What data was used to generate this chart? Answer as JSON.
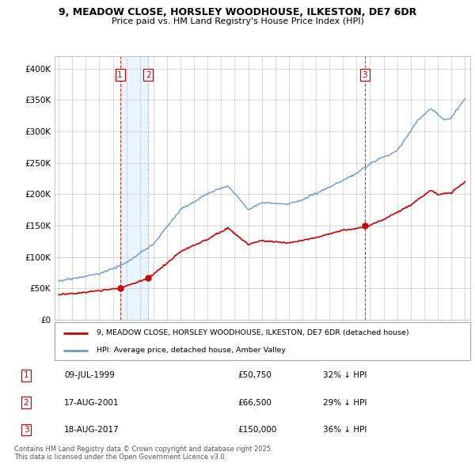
{
  "title": "9, MEADOW CLOSE, HORSLEY WOODHOUSE, ILKESTON, DE7 6DR",
  "subtitle": "Price paid vs. HM Land Registry's House Price Index (HPI)",
  "transactions": [
    {
      "num": 1,
      "date": "09-JUL-1999",
      "price": 50750,
      "pct": "32% ↓ HPI",
      "year": 1999.53
    },
    {
      "num": 2,
      "date": "17-AUG-2001",
      "price": 66500,
      "pct": "29% ↓ HPI",
      "year": 2001.62
    },
    {
      "num": 3,
      "date": "18-AUG-2017",
      "price": 150000,
      "pct": "36% ↓ HPI",
      "year": 2017.62
    }
  ],
  "legend_label_red": "9, MEADOW CLOSE, HORSLEY WOODHOUSE, ILKESTON, DE7 6DR (detached house)",
  "legend_label_blue": "HPI: Average price, detached house, Amber Valley",
  "footer": "Contains HM Land Registry data © Crown copyright and database right 2025.\nThis data is licensed under the Open Government Licence v3.0.",
  "ylim": [
    0,
    420000
  ],
  "yticks": [
    0,
    50000,
    100000,
    150000,
    200000,
    250000,
    300000,
    350000,
    400000
  ],
  "red_color": "#cc0000",
  "blue_color": "#6699cc",
  "vline1_color": "#cc0000",
  "vline2_color": "#aabbdd",
  "shade_color": "#ddeeff",
  "background_color": "#ffffff",
  "grid_color": "#cccccc"
}
